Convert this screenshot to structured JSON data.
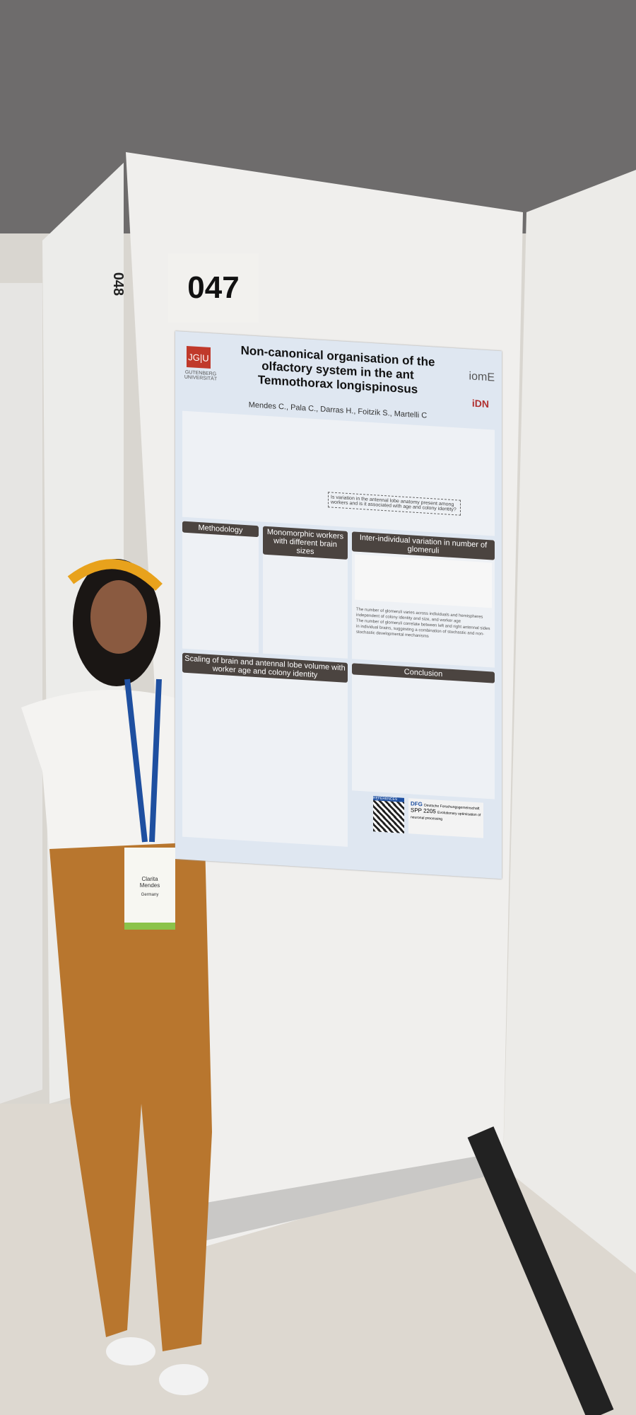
{
  "board": {
    "number": "047",
    "neighbor_number": "048"
  },
  "poster": {
    "logo_left": "JG|U",
    "logo_left_sub": "GUTENBERG UNIVERSITÄT",
    "title": "Non-canonical organisation of the olfactory system in the ant Temnothorax longispinosus",
    "authors": "Mendes C., Pala C., Darras H., Foitzik S., Martelli C",
    "logo_right_1": "iomE",
    "logo_right_2": "iDN",
    "intro_question": "Is variation in the antennal lobe anatomy present among workers and is it associated with age and colony identity?",
    "sections": {
      "methodology": "Methodology",
      "monomorphic": "Monomorphic workers with different brain sizes",
      "variation": "Inter-individual variation in number of glomeruli",
      "scaling": "Scaling of brain and antennal lobe volume with worker age and colony identity",
      "conclusion": "Conclusion"
    },
    "variation_bullets": [
      "The number of glomeruli varies across individuals and hemispheres independent of colony identity and size, and worker age",
      "The number of glomeruli correlate between left and right antennal sides in individual brains, suggesting a combination of stochastic and non-stochastic developmental mechanisms"
    ],
    "references_label": "REFERENCES",
    "funder": "DFG",
    "funder_sub": "Deutsche Forschungsgemeinschaft",
    "program": "SPP 2205",
    "program_sub": "Evolutionary optimisation of neuronal processing"
  },
  "badge": {
    "first_name": "Clarita",
    "last_name": "Mendes",
    "country": "Germany"
  },
  "colors": {
    "header": "#4b4440",
    "poster_bg": "#dfe7f1",
    "trousers": "#b8762e",
    "headband": "#e8a21c",
    "lanyard": "#1e4fa0"
  }
}
